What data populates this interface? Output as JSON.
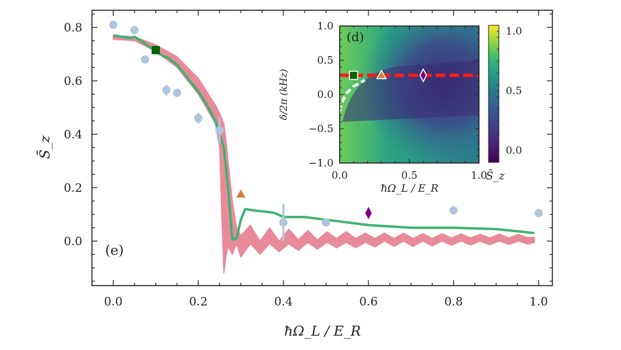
{
  "chart_data": [
    {
      "type": "line",
      "panel_label": "(e)",
      "xlabel": "ħΩ_L / E_R",
      "ylabel": "S̄_z",
      "xlim": [
        -0.05,
        1.03
      ],
      "ylim": [
        -0.16,
        0.88
      ],
      "xticks": [
        "0.0",
        "0.2",
        "0.4",
        "0.6",
        "0.8",
        "1.0"
      ],
      "yticks": [
        "0.0",
        "0.2",
        "0.4",
        "0.6",
        "0.8"
      ],
      "grid": false,
      "colors": {
        "data": "#b0c4de",
        "green": "#3cb371",
        "band": "#e98a9a",
        "square": "#006400",
        "triangle": "#cd7f32",
        "diamond": "#800080"
      },
      "data_points": {
        "x": [
          0.0,
          0.05,
          0.075,
          0.125,
          0.15,
          0.2,
          0.25,
          0.4,
          0.5,
          0.8,
          1.0
        ],
        "y": [
          0.81,
          0.79,
          0.68,
          0.565,
          0.555,
          0.46,
          0.415,
          0.07,
          0.07,
          0.115,
          0.105
        ],
        "err": [
          0,
          0.015,
          0.015,
          0.02,
          0.015,
          0.02,
          0.05,
          0.07,
          0,
          0,
          0
        ]
      },
      "green_line": {
        "x": [
          0.0,
          0.02,
          0.04,
          0.05,
          0.07,
          0.1,
          0.12,
          0.13,
          0.15,
          0.2,
          0.22,
          0.24,
          0.26,
          0.27,
          0.28,
          0.29,
          0.3,
          0.31,
          0.33,
          0.36,
          0.38,
          0.4,
          0.45,
          0.5,
          0.55,
          0.6,
          0.7,
          0.8,
          0.9,
          0.99
        ],
        "y": [
          0.77,
          0.765,
          0.76,
          0.765,
          0.745,
          0.71,
          0.69,
          0.685,
          0.66,
          0.56,
          0.51,
          0.45,
          0.35,
          0.2,
          0.005,
          0.01,
          0.08,
          0.12,
          0.115,
          0.11,
          0.105,
          0.09,
          0.09,
          0.08,
          0.07,
          0.06,
          0.05,
          0.05,
          0.045,
          0.03
        ]
      },
      "band": {
        "x": [
          0.0,
          0.05,
          0.1,
          0.15,
          0.2,
          0.24,
          0.25,
          0.255,
          0.26,
          0.265,
          0.27,
          0.28,
          0.29,
          0.3,
          0.3225,
          0.345,
          0.3675,
          0.39,
          0.4125,
          0.435,
          0.4575,
          0.48,
          0.5025,
          0.525,
          0.5475,
          0.57,
          0.5925,
          0.615,
          0.6375,
          0.66,
          0.6825,
          0.705,
          0.7275,
          0.75,
          0.7725,
          0.795,
          0.8175,
          0.84,
          0.8625,
          0.885,
          0.9075,
          0.93,
          0.9525,
          0.975,
          0.99
        ],
        "upper": [
          0.77,
          0.765,
          0.735,
          0.69,
          0.61,
          0.51,
          0.48,
          0.46,
          0.44,
          0.38,
          0.3,
          0.15,
          0.05,
          0.02,
          0.06,
          0.0,
          0.05,
          0.0,
          0.045,
          0.005,
          0.04,
          0.005,
          0.035,
          0.01,
          0.035,
          0.01,
          0.03,
          0.01,
          0.03,
          0.01,
          0.03,
          0.01,
          0.028,
          0.01,
          0.028,
          0.012,
          0.027,
          0.012,
          0.026,
          0.012,
          0.026,
          0.012,
          0.025,
          0.013,
          0.015
        ],
        "lower": [
          0.755,
          0.75,
          0.71,
          0.65,
          0.55,
          0.44,
          0.35,
          0.1,
          -0.12,
          -0.06,
          -0.02,
          -0.05,
          -0.01,
          -0.06,
          -0.01,
          -0.05,
          -0.01,
          -0.04,
          -0.01,
          -0.035,
          -0.005,
          -0.03,
          -0.005,
          -0.025,
          -0.005,
          -0.025,
          -0.005,
          -0.022,
          0.0,
          -0.02,
          0.0,
          -0.02,
          0.0,
          -0.018,
          0.0,
          -0.016,
          0.0,
          -0.015,
          0.0,
          -0.014,
          0.0,
          -0.013,
          0.0,
          -0.012,
          -0.005
        ]
      },
      "markers": [
        {
          "shape": "square",
          "x": 0.1,
          "y": 0.715
        },
        {
          "shape": "triangle",
          "x": 0.3,
          "y": 0.175
        },
        {
          "shape": "diamond",
          "x": 0.6,
          "y": 0.105
        }
      ]
    },
    {
      "type": "heatmap",
      "panel_label": "(d)",
      "xlabel": "ħΩ_L / E_R",
      "ylabel": "δ/2π (kHz)",
      "xlim": [
        0.0,
        1.0
      ],
      "ylim": [
        -1.0,
        1.0
      ],
      "xticks": [
        "0.0",
        "0.5",
        "1.0"
      ],
      "yticks": [
        "−1.0",
        "−0.5",
        "0.0",
        "0.5",
        "1.0"
      ],
      "colorbar": {
        "label": "S̄_z",
        "colormap": "viridis",
        "range": [
          -0.1,
          1.05
        ],
        "ticks": [
          "0.0",
          "0.5",
          "1.0"
        ]
      },
      "red_dashed_line_y": 0.28,
      "white_dashed_boundary": {
        "x": [
          0.0,
          0.02,
          0.05,
          0.1,
          0.18
        ],
        "y": [
          -0.25,
          -0.1,
          0.02,
          0.12,
          0.21
        ]
      },
      "markers": [
        {
          "shape": "square",
          "x": 0.1,
          "y": 0.28
        },
        {
          "shape": "triangle",
          "x": 0.3,
          "y": 0.28
        },
        {
          "shape": "diamond",
          "x": 0.6,
          "y": 0.28
        }
      ]
    }
  ]
}
